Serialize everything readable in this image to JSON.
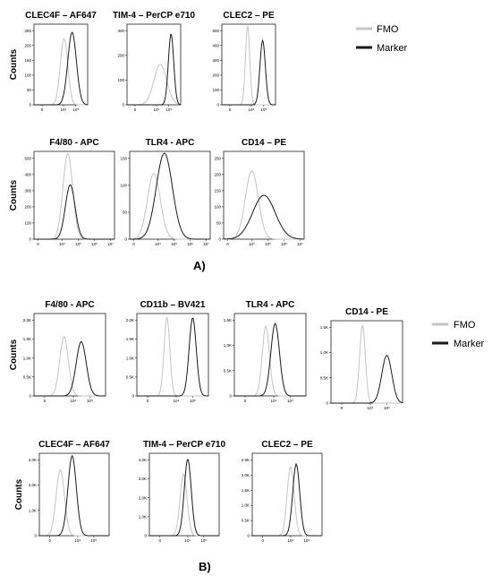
{
  "legend": {
    "fmo": "FMO",
    "marker": "Marker"
  },
  "colors": {
    "fmo": "#c4c4c4",
    "marker": "#1a1a1a",
    "axis": "#000000"
  },
  "panels": [
    {
      "label": "A)",
      "charts": [
        {
          "id": "a1",
          "title": "CLEC4F – AF647",
          "ylabel": "Counts",
          "y_ticks": [
            "0",
            "50",
            "100",
            "150",
            "200",
            "250"
          ],
          "x_ticks": [
            "0",
            "10⁴",
            "10⁵"
          ],
          "fmo": {
            "mu": 0.56,
            "sd": 0.07,
            "peak": 0.82
          },
          "marker": {
            "mu": 0.71,
            "sd": 0.08,
            "peak": 0.9
          }
        },
        {
          "id": "a2",
          "title": "TIM-4 – PerCP e710",
          "ylabel": "",
          "y_ticks": [
            "0",
            "100",
            "200",
            "300"
          ],
          "x_ticks": [
            "0",
            "10⁴",
            "10⁵"
          ],
          "fmo": {
            "mu": 0.62,
            "sd": 0.12,
            "peak": 0.5
          },
          "marker": {
            "mu": 0.82,
            "sd": 0.05,
            "peak": 0.88
          }
        },
        {
          "id": "a3",
          "title": "CLEC2 – PE",
          "ylabel": "",
          "y_ticks": [
            "0",
            "100",
            "200",
            "300",
            "400",
            "500"
          ],
          "x_ticks": [
            "0",
            "10⁴",
            "10⁵"
          ],
          "fmo": {
            "mu": 0.48,
            "sd": 0.04,
            "peak": 0.98
          },
          "marker": {
            "mu": 0.76,
            "sd": 0.05,
            "peak": 0.8
          }
        },
        {
          "id": "a4",
          "title": "F4/80 - APC",
          "ylabel": "Counts",
          "y_ticks": [
            "0",
            "100",
            "200",
            "300",
            "400",
            "500"
          ],
          "x_ticks": [
            "0",
            "10⁴",
            "10⁵",
            "10⁶",
            "10⁷"
          ],
          "fmo": {
            "mu": 0.42,
            "sd": 0.06,
            "peak": 0.98
          },
          "marker": {
            "mu": 0.45,
            "sd": 0.06,
            "peak": 0.62
          }
        },
        {
          "id": "a5",
          "title": "TLR4 - APC",
          "ylabel": "",
          "y_ticks": [
            "0",
            "50",
            "100",
            "150"
          ],
          "x_ticks": [
            "0",
            "10⁴",
            "10⁵",
            "10⁶",
            "10⁷"
          ],
          "fmo": {
            "mu": 0.3,
            "sd": 0.08,
            "peak": 0.75
          },
          "marker": {
            "mu": 0.43,
            "sd": 0.1,
            "peak": 0.98
          }
        },
        {
          "id": "a6",
          "title": "CD14 – PE",
          "ylabel": "",
          "y_ticks": [
            "0",
            "50",
            "100",
            "150",
            "200",
            "250"
          ],
          "x_ticks": [
            "0",
            "10⁴",
            "10⁵",
            "10⁶",
            "10⁷"
          ],
          "fmo": {
            "mu": 0.35,
            "sd": 0.08,
            "peak": 0.78
          },
          "marker": {
            "mu": 0.5,
            "sd": 0.14,
            "peak": 0.5
          }
        }
      ]
    },
    {
      "label": "B)",
      "charts": [
        {
          "id": "b1",
          "title": "F4/80 - APC",
          "ylabel": "Counts",
          "y_ticks": [
            "0",
            "0.5K",
            "1.0K",
            "1.5K",
            "2.0K"
          ],
          "x_ticks": [
            "0",
            "10⁴",
            "10⁵"
          ],
          "fmo": {
            "mu": 0.42,
            "sd": 0.06,
            "peak": 0.72
          },
          "marker": {
            "mu": 0.66,
            "sd": 0.07,
            "peak": 0.66
          }
        },
        {
          "id": "b2",
          "title": "CD11b – BV421",
          "ylabel": "",
          "y_ticks": [
            "0",
            "0.5K",
            "1.0K",
            "1.5K",
            "2.0K"
          ],
          "x_ticks": [
            "0",
            "10⁴",
            "10⁵"
          ],
          "fmo": {
            "mu": 0.42,
            "sd": 0.04,
            "peak": 0.96
          },
          "marker": {
            "mu": 0.78,
            "sd": 0.05,
            "peak": 0.95
          }
        },
        {
          "id": "b3",
          "title": "TLR4 - APC",
          "ylabel": "",
          "y_ticks": [
            "0",
            "0.5K",
            "1.0K",
            "1.5K"
          ],
          "x_ticks": [
            "0",
            "10⁴",
            "10⁵"
          ],
          "fmo": {
            "mu": 0.44,
            "sd": 0.05,
            "peak": 0.85
          },
          "marker": {
            "mu": 0.57,
            "sd": 0.06,
            "peak": 0.88
          }
        },
        {
          "id": "b4",
          "title": "CD14 - PE",
          "ylabel": "",
          "y_ticks": [
            "0",
            "0.5K",
            "1.0K",
            "1.5K"
          ],
          "x_ticks": [
            "0",
            "10⁴",
            "10⁵"
          ],
          "fmo": {
            "mu": 0.44,
            "sd": 0.04,
            "peak": 0.95
          },
          "marker": {
            "mu": 0.78,
            "sd": 0.07,
            "peak": 0.58
          }
        },
        {
          "id": "b5",
          "title": "CLEC4F – AF647",
          "ylabel": "Counts",
          "y_ticks": [
            "0",
            "1.0K",
            "2.0K",
            "3.0K"
          ],
          "x_ticks": [
            "0",
            "10⁴",
            "10⁵"
          ],
          "fmo": {
            "mu": 0.3,
            "sd": 0.06,
            "peak": 0.8
          },
          "marker": {
            "mu": 0.47,
            "sd": 0.06,
            "peak": 0.97
          }
        },
        {
          "id": "b6",
          "title": "TIM-4 – PerCP e710",
          "ylabel": "",
          "y_ticks": [
            "0",
            "1.0K",
            "2.0K",
            "3.0K",
            "4.0K"
          ],
          "x_ticks": [
            "0",
            "10⁴",
            "10⁵"
          ],
          "fmo": {
            "mu": 0.49,
            "sd": 0.05,
            "peak": 0.75
          },
          "marker": {
            "mu": 0.55,
            "sd": 0.05,
            "peak": 0.93
          }
        },
        {
          "id": "b7",
          "title": "CLEC2 – PE",
          "ylabel": "",
          "y_ticks": [
            "0",
            "0.5K",
            "1.0K",
            "1.5K",
            "2.0K",
            "2.5K"
          ],
          "x_ticks": [
            "0",
            "10⁴",
            "10⁵"
          ],
          "fmo": {
            "mu": 0.55,
            "sd": 0.05,
            "peak": 0.84
          },
          "marker": {
            "mu": 0.63,
            "sd": 0.05,
            "peak": 0.87
          }
        }
      ]
    }
  ],
  "chart_data": [
    {
      "type": "area",
      "title": "CLEC4F – AF647",
      "ylabel": "Counts",
      "ylim": [
        0,
        250
      ],
      "y_ticks": [
        "0",
        "50",
        "100",
        "150",
        "200",
        "250"
      ],
      "x_ticks": [
        "0",
        "10⁴",
        "10⁵"
      ],
      "series": [
        {
          "name": "FMO",
          "x": [
            0.3,
            0.4,
            0.5,
            0.56,
            0.62,
            0.7,
            0.8
          ],
          "y": [
            0,
            20,
            145,
            205,
            145,
            20,
            0
          ]
        },
        {
          "name": "Marker",
          "x": [
            0.45,
            0.55,
            0.65,
            0.71,
            0.77,
            0.87,
            0.97
          ],
          "y": [
            0,
            20,
            145,
            225,
            145,
            20,
            0
          ]
        }
      ]
    },
    {
      "type": "area",
      "title": "TIM-4 – PerCP e710",
      "ylim": [
        0,
        350
      ],
      "y_ticks": [
        "0",
        "100",
        "200",
        "300"
      ],
      "x_ticks": [
        "0",
        "10⁴",
        "10⁵"
      ],
      "series": [
        {
          "name": "FMO",
          "x": [
            0.3,
            0.45,
            0.62,
            0.8,
            0.95
          ],
          "y": [
            0,
            60,
            175,
            60,
            0
          ]
        },
        {
          "name": "Marker",
          "x": [
            0.67,
            0.76,
            0.82,
            0.88,
            0.97
          ],
          "y": [
            0,
            110,
            308,
            110,
            0
          ]
        }
      ]
    },
    {
      "type": "area",
      "title": "CLEC2 – PE",
      "ylim": [
        0,
        550
      ],
      "y_ticks": [
        "0",
        "100",
        "200",
        "300",
        "400",
        "500"
      ],
      "x_ticks": [
        "0",
        "10⁴",
        "10⁵"
      ],
      "series": [
        {
          "name": "FMO",
          "x": [
            0.36,
            0.44,
            0.48,
            0.52,
            0.6
          ],
          "y": [
            0,
            200,
            540,
            200,
            0
          ]
        },
        {
          "name": "Marker",
          "x": [
            0.6,
            0.7,
            0.76,
            0.82,
            0.92
          ],
          "y": [
            0,
            90,
            440,
            90,
            0
          ]
        }
      ]
    },
    {
      "type": "area",
      "title": "F4/80 - APC",
      "ylabel": "Counts",
      "ylim": [
        0,
        550
      ],
      "y_ticks": [
        "0",
        "100",
        "200",
        "300",
        "400",
        "500"
      ],
      "x_ticks": [
        "0",
        "10⁴",
        "10⁵",
        "10⁶",
        "10⁷"
      ],
      "series": [
        {
          "name": "FMO",
          "x": [
            0.25,
            0.36,
            0.42,
            0.48,
            0.6
          ],
          "y": [
            0,
            180,
            540,
            180,
            0
          ]
        },
        {
          "name": "Marker",
          "x": [
            0.28,
            0.39,
            0.45,
            0.51,
            0.63
          ],
          "y": [
            0,
            110,
            340,
            110,
            0
          ]
        }
      ]
    },
    {
      "type": "area",
      "title": "TLR4 - APC",
      "ylim": [
        0,
        190
      ],
      "y_ticks": [
        "0",
        "50",
        "100",
        "150"
      ],
      "x_ticks": [
        "0",
        "10⁴",
        "10⁵",
        "10⁶",
        "10⁷"
      ],
      "series": [
        {
          "name": "FMO",
          "x": [
            0.1,
            0.22,
            0.3,
            0.38,
            0.5
          ],
          "y": [
            0,
            45,
            140,
            45,
            0
          ]
        },
        {
          "name": "Marker",
          "x": [
            0.15,
            0.33,
            0.43,
            0.53,
            0.7
          ],
          "y": [
            0,
            60,
            185,
            60,
            0
          ]
        }
      ]
    },
    {
      "type": "area",
      "title": "CD14 – PE",
      "ylim": [
        0,
        275
      ],
      "y_ticks": [
        "0",
        "50",
        "100",
        "150",
        "200",
        "250"
      ],
      "x_ticks": [
        "0",
        "10⁴",
        "10⁵",
        "10⁶",
        "10⁷"
      ],
      "series": [
        {
          "name": "FMO",
          "x": [
            0.15,
            0.27,
            0.35,
            0.43,
            0.55
          ],
          "y": [
            0,
            70,
            215,
            70,
            0
          ]
        },
        {
          "name": "Marker",
          "x": [
            0.15,
            0.36,
            0.5,
            0.64,
            0.85
          ],
          "y": [
            0,
            45,
            138,
            45,
            0
          ]
        }
      ]
    },
    {
      "type": "area",
      "title": "F4/80 - APC",
      "ylabel": "Counts",
      "ylim": [
        0,
        2000
      ],
      "y_ticks": [
        "0",
        "0.5K",
        "1.0K",
        "1.5K",
        "2.0K"
      ],
      "x_ticks": [
        "0",
        "10⁴",
        "10⁵"
      ],
      "series": [
        {
          "name": "FMO",
          "x": [
            0.25,
            0.36,
            0.42,
            0.48,
            0.6
          ],
          "y": [
            0,
            480,
            1450,
            480,
            0
          ]
        },
        {
          "name": "Marker",
          "x": [
            0.45,
            0.59,
            0.66,
            0.73,
            0.87
          ],
          "y": [
            0,
            440,
            1330,
            440,
            0
          ]
        }
      ]
    },
    {
      "type": "area",
      "title": "CD11b – BV421",
      "ylim": [
        0,
        2000
      ],
      "y_ticks": [
        "0",
        "0.5K",
        "1.0K",
        "1.5K",
        "2.0K"
      ],
      "x_ticks": [
        "0",
        "10⁴",
        "10⁵"
      ],
      "series": [
        {
          "name": "FMO",
          "x": [
            0.3,
            0.38,
            0.42,
            0.46,
            0.54
          ],
          "y": [
            0,
            640,
            1920,
            640,
            0
          ]
        },
        {
          "name": "Marker",
          "x": [
            0.63,
            0.73,
            0.78,
            0.83,
            0.93
          ],
          "y": [
            0,
            630,
            1900,
            630,
            0
          ]
        }
      ]
    },
    {
      "type": "area",
      "title": "TLR4 - APC",
      "ylim": [
        0,
        1700
      ],
      "y_ticks": [
        "0",
        "0.5K",
        "1.0K",
        "1.5K"
      ],
      "x_ticks": [
        "0",
        "10⁴",
        "10⁵"
      ],
      "series": [
        {
          "name": "FMO",
          "x": [
            0.29,
            0.39,
            0.44,
            0.49,
            0.59
          ],
          "y": [
            0,
            480,
            1450,
            480,
            0
          ]
        },
        {
          "name": "Marker",
          "x": [
            0.39,
            0.51,
            0.57,
            0.63,
            0.75
          ],
          "y": [
            0,
            500,
            1500,
            500,
            0
          ]
        }
      ]
    },
    {
      "type": "area",
      "title": "CD14 - PE",
      "ylim": [
        0,
        1700
      ],
      "y_ticks": [
        "0",
        "0.5K",
        "1.0K",
        "1.5K"
      ],
      "x_ticks": [
        "0",
        "10⁴",
        "10⁵"
      ],
      "series": [
        {
          "name": "FMO",
          "x": [
            0.32,
            0.4,
            0.44,
            0.48,
            0.56
          ],
          "y": [
            0,
            540,
            1620,
            540,
            0
          ]
        },
        {
          "name": "Marker",
          "x": [
            0.57,
            0.71,
            0.78,
            0.85,
            0.99
          ],
          "y": [
            0,
            330,
            1000,
            330,
            0
          ]
        }
      ]
    },
    {
      "type": "area",
      "title": "CLEC4F – AF647",
      "ylabel": "Counts",
      "ylim": [
        0,
        3000
      ],
      "y_ticks": [
        "0",
        "1.0K",
        "2.0K",
        "3.0K"
      ],
      "x_ticks": [
        "0",
        "10⁴",
        "10⁵"
      ],
      "series": [
        {
          "name": "FMO",
          "x": [
            0.12,
            0.24,
            0.3,
            0.36,
            0.48
          ],
          "y": [
            0,
            800,
            2400,
            800,
            0
          ]
        },
        {
          "name": "Marker",
          "x": [
            0.29,
            0.41,
            0.47,
            0.53,
            0.65
          ],
          "y": [
            0,
            970,
            2900,
            970,
            0
          ]
        }
      ]
    },
    {
      "type": "area",
      "title": "TIM-4 – PerCP e710",
      "ylim": [
        0,
        4000
      ],
      "y_ticks": [
        "0",
        "1.0K",
        "2.0K",
        "3.0K",
        "4.0K"
      ],
      "x_ticks": [
        "0",
        "10⁴",
        "10⁵"
      ],
      "series": [
        {
          "name": "FMO",
          "x": [
            0.34,
            0.44,
            0.49,
            0.54,
            0.64
          ],
          "y": [
            0,
            1000,
            3000,
            1000,
            0
          ]
        },
        {
          "name": "Marker",
          "x": [
            0.4,
            0.5,
            0.55,
            0.6,
            0.7
          ],
          "y": [
            0,
            1240,
            3720,
            1240,
            0
          ]
        }
      ]
    },
    {
      "type": "area",
      "title": "CLEC2 – PE",
      "ylim": [
        0,
        2700
      ],
      "y_ticks": [
        "0",
        "0.5K",
        "1.0K",
        "1.5K",
        "2.0K",
        "2.5K"
      ],
      "x_ticks": [
        "0",
        "10⁴",
        "10⁵"
      ],
      "series": [
        {
          "name": "FMO",
          "x": [
            0.4,
            0.5,
            0.55,
            0.6,
            0.7
          ],
          "y": [
            0,
            760,
            2270,
            760,
            0
          ]
        },
        {
          "name": "Marker",
          "x": [
            0.48,
            0.58,
            0.63,
            0.68,
            0.78
          ],
          "y": [
            0,
            780,
            2350,
            780,
            0
          ]
        }
      ]
    }
  ]
}
